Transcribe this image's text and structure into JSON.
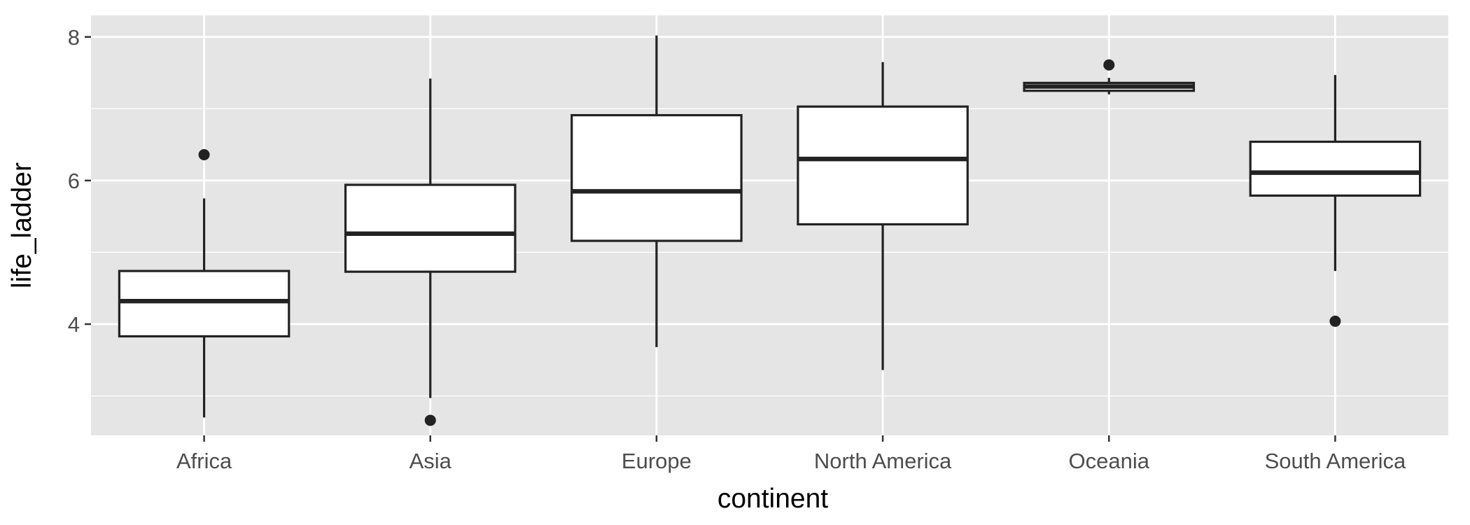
{
  "chart_data": {
    "type": "boxplot",
    "title": "",
    "xlabel": "continent",
    "ylabel": "life_ladder",
    "ylim": [
      2.45,
      8.3
    ],
    "y_ticks": [
      4,
      6,
      8
    ],
    "y_tick_labels": [
      "4",
      "6",
      "8"
    ],
    "grid": true,
    "colors": {
      "panel": "#e5e5e5",
      "grid": "#ffffff",
      "box_fill": "#ffffff",
      "box_stroke": "#222222",
      "outlier": "#222222"
    },
    "categories": [
      "Africa",
      "Asia",
      "Europe",
      "North America",
      "Oceania",
      "South America"
    ],
    "boxes": [
      {
        "category": "Africa",
        "whisker_low": 2.7,
        "q1": 3.83,
        "median": 4.32,
        "q3": 4.74,
        "whisker_high": 5.75,
        "outliers": [
          6.36
        ]
      },
      {
        "category": "Asia",
        "whisker_low": 2.97,
        "q1": 4.73,
        "median": 5.26,
        "q3": 5.94,
        "whisker_high": 7.42,
        "outliers": [
          2.66
        ]
      },
      {
        "category": "Europe",
        "whisker_low": 3.68,
        "q1": 5.16,
        "median": 5.85,
        "q3": 6.91,
        "whisker_high": 8.02,
        "outliers": []
      },
      {
        "category": "North America",
        "whisker_low": 3.36,
        "q1": 5.39,
        "median": 6.3,
        "q3": 7.03,
        "whisker_high": 7.65,
        "outliers": []
      },
      {
        "category": "Oceania",
        "whisker_low": 7.2,
        "q1": 7.25,
        "median": 7.31,
        "q3": 7.36,
        "whisker_high": 7.43,
        "outliers": [
          7.61
        ]
      },
      {
        "category": "South America",
        "whisker_low": 4.74,
        "q1": 5.79,
        "median": 6.11,
        "q3": 6.54,
        "whisker_high": 7.47,
        "outliers": [
          4.04
        ]
      }
    ]
  }
}
